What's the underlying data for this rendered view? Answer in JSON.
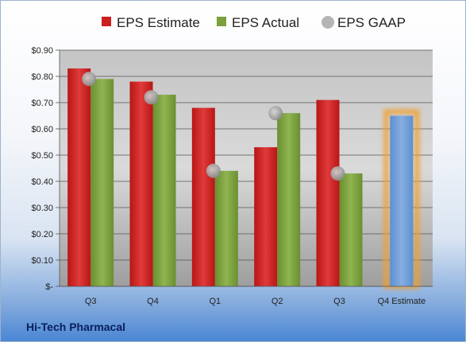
{
  "company": "Hi-Tech Pharmacal",
  "chart_data": {
    "type": "bar",
    "title": "",
    "xlabel": "",
    "ylabel": "",
    "ylim": [
      0,
      0.9
    ],
    "y_ticks": [
      0,
      0.1,
      0.2,
      0.3,
      0.4,
      0.5,
      0.6,
      0.7,
      0.8,
      0.9
    ],
    "y_tick_labels": [
      "$-",
      "$0.10",
      "$0.20",
      "$0.30",
      "$0.40",
      "$0.50",
      "$0.60",
      "$0.70",
      "$0.80",
      "$0.90"
    ],
    "grid": true,
    "legend_position": "top",
    "categories": [
      "Q3",
      "Q4",
      "Q1",
      "Q2",
      "Q3",
      "Q4 Estimate"
    ],
    "series": [
      {
        "name": "EPS Estimate",
        "type": "bar",
        "color": "#cc1f1f",
        "values": [
          0.83,
          0.78,
          0.68,
          0.53,
          0.71,
          null
        ]
      },
      {
        "name": "EPS Actual",
        "type": "bar",
        "color": "#7ba03c",
        "values": [
          0.79,
          0.73,
          0.44,
          0.66,
          0.43,
          null
        ]
      },
      {
        "name": "EPS GAAP",
        "type": "scatter",
        "color": "#a8a8a8",
        "values": [
          0.79,
          0.72,
          0.44,
          0.66,
          0.43,
          null
        ]
      }
    ],
    "highlight": {
      "category": "Q4 Estimate",
      "value": 0.65,
      "color": "#6f9fd8",
      "glow": "#f0a030"
    }
  }
}
